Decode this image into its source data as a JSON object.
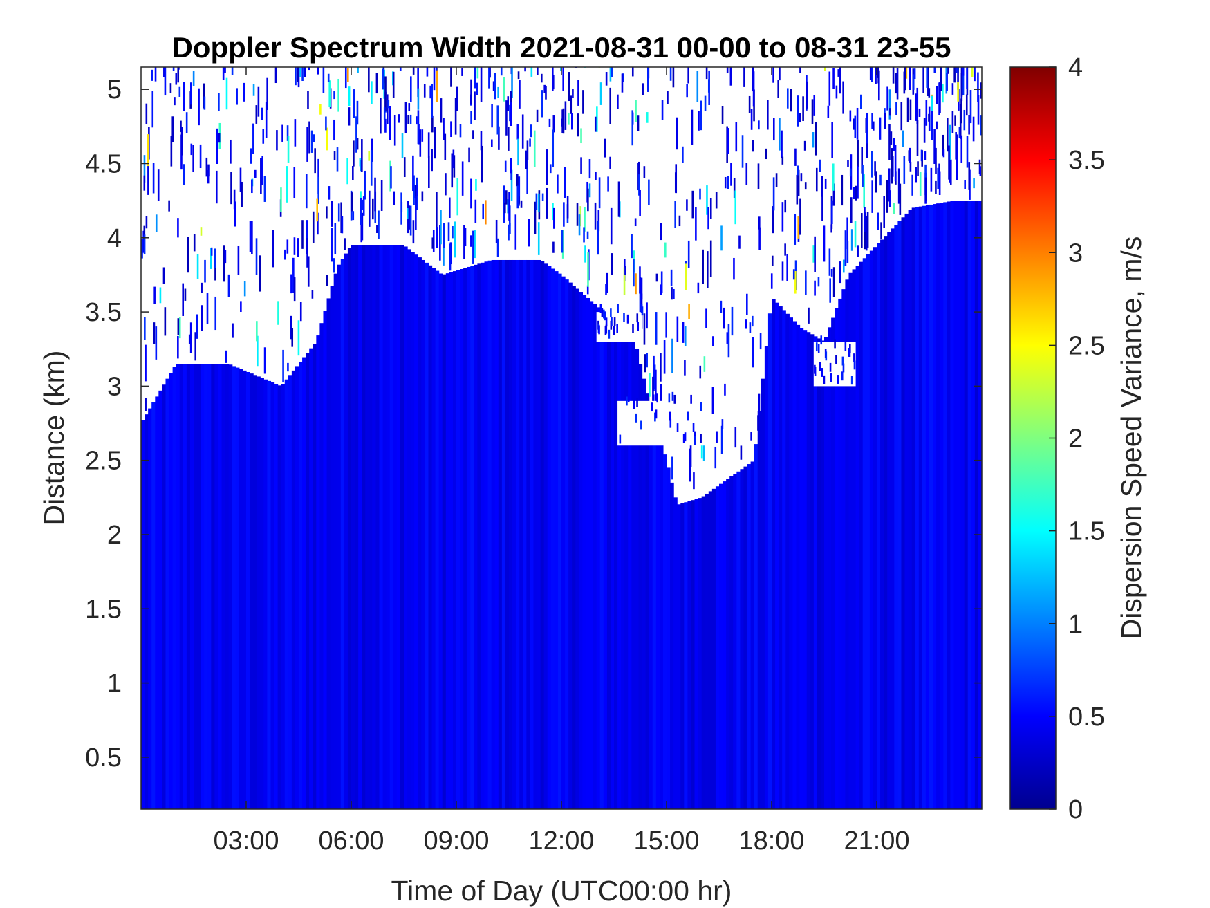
{
  "chart_data": {
    "type": "heatmap",
    "title": "Doppler Spectrum Width 2021-08-31 00-00 to 08-31 23-55",
    "xlabel": "Time of Day (UTC00:00 hr)",
    "ylabel": "Distance (km)",
    "colorbar_label": "Dispersion Speed Variance, m/s",
    "colormap": "jet",
    "xlim": [
      0,
      24
    ],
    "ylim": [
      0.15,
      5.15
    ],
    "clim": [
      0,
      4
    ],
    "x_ticks": [
      {
        "value": 3,
        "label": "03:00"
      },
      {
        "value": 6,
        "label": "06:00"
      },
      {
        "value": 9,
        "label": "09:00"
      },
      {
        "value": 12,
        "label": "12:00"
      },
      {
        "value": 15,
        "label": "15:00"
      },
      {
        "value": 18,
        "label": "18:00"
      },
      {
        "value": 21,
        "label": "21:00"
      }
    ],
    "y_ticks": [
      {
        "value": 0.5,
        "label": "0.5"
      },
      {
        "value": 1,
        "label": "1"
      },
      {
        "value": 1.5,
        "label": "1.5"
      },
      {
        "value": 2,
        "label": "2"
      },
      {
        "value": 2.5,
        "label": "2.5"
      },
      {
        "value": 3,
        "label": "3"
      },
      {
        "value": 3.5,
        "label": "3.5"
      },
      {
        "value": 4,
        "label": "4"
      },
      {
        "value": 4.5,
        "label": "4.5"
      },
      {
        "value": 5,
        "label": "5"
      }
    ],
    "colorbar_ticks": [
      {
        "value": 0,
        "label": "0"
      },
      {
        "value": 0.5,
        "label": "0.5"
      },
      {
        "value": 1,
        "label": "1"
      },
      {
        "value": 1.5,
        "label": "1.5"
      },
      {
        "value": 2,
        "label": "2"
      },
      {
        "value": 2.5,
        "label": "2.5"
      },
      {
        "value": 3,
        "label": "3"
      },
      {
        "value": 3.5,
        "label": "3.5"
      },
      {
        "value": 4,
        "label": "4"
      }
    ],
    "typical_value": 0.45,
    "missing_value_color": "#ffffff",
    "data_top_profile": [
      {
        "time": 0.0,
        "top_km": 2.75
      },
      {
        "time": 0.5,
        "top_km": 2.95
      },
      {
        "time": 1.0,
        "top_km": 3.15
      },
      {
        "time": 2.5,
        "top_km": 3.15
      },
      {
        "time": 4.0,
        "top_km": 3.0
      },
      {
        "time": 5.0,
        "top_km": 3.3
      },
      {
        "time": 5.6,
        "top_km": 3.8
      },
      {
        "time": 6.0,
        "top_km": 3.95
      },
      {
        "time": 7.5,
        "top_km": 3.95
      },
      {
        "time": 8.6,
        "top_km": 3.75
      },
      {
        "time": 10.0,
        "top_km": 3.85
      },
      {
        "time": 11.4,
        "top_km": 3.85
      },
      {
        "time": 12.0,
        "top_km": 3.75
      },
      {
        "time": 13.2,
        "top_km": 3.5
      },
      {
        "time": 14.0,
        "top_km": 3.4
      },
      {
        "time": 14.5,
        "top_km": 2.9
      },
      {
        "time": 15.0,
        "top_km": 2.5
      },
      {
        "time": 15.3,
        "top_km": 2.2
      },
      {
        "time": 16.0,
        "top_km": 2.25
      },
      {
        "time": 16.6,
        "top_km": 2.35
      },
      {
        "time": 17.5,
        "top_km": 2.5
      },
      {
        "time": 18.0,
        "top_km": 3.6
      },
      {
        "time": 18.8,
        "top_km": 3.4
      },
      {
        "time": 19.5,
        "top_km": 3.3
      },
      {
        "time": 20.2,
        "top_km": 3.75
      },
      {
        "time": 21.0,
        "top_km": 3.95
      },
      {
        "time": 22.0,
        "top_km": 4.2
      },
      {
        "time": 23.2,
        "top_km": 4.25
      },
      {
        "time": 24.0,
        "top_km": 4.25
      }
    ],
    "clear_gaps": [
      {
        "t0": 13.0,
        "t1": 14.3,
        "z0": 3.3,
        "z1": 3.5
      },
      {
        "t0": 13.6,
        "t1": 16.2,
        "z0": 2.6,
        "z1": 2.9
      },
      {
        "t0": 19.2,
        "t1": 20.4,
        "z0": 3.0,
        "z1": 3.3
      }
    ],
    "grid": false
  }
}
